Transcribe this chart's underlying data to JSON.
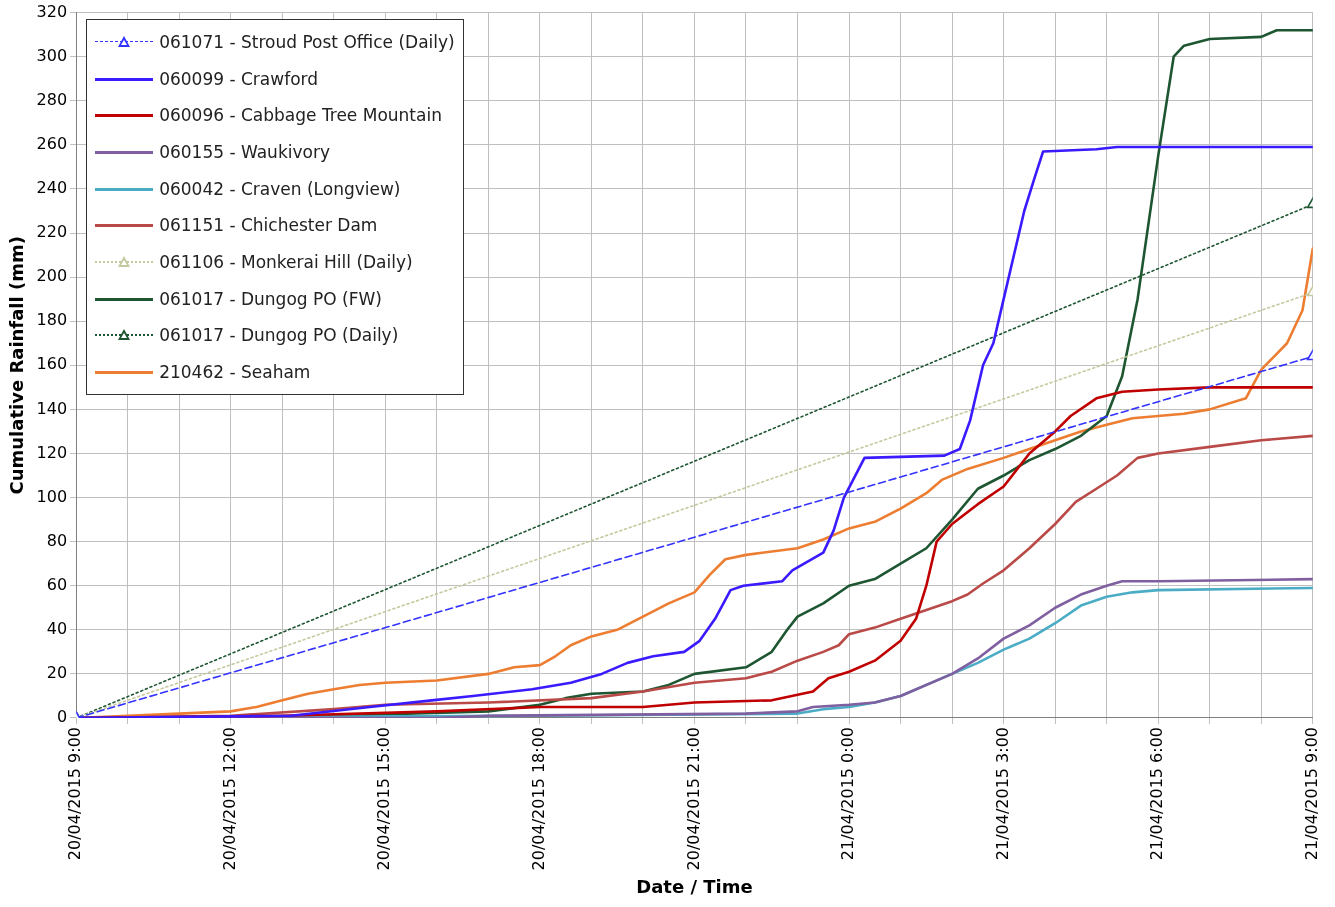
{
  "chart_data": {
    "type": "line",
    "xlabel": "Date / Time",
    "ylabel": "Cumulative Rainfall (mm)",
    "xlim": [
      "2015-04-20T09:00",
      "2015-04-21T09:00"
    ],
    "xticks": [
      {
        "value": "2015-04-20T09:00",
        "label": "20/04/2015 9:00"
      },
      {
        "value": "2015-04-20T10:00",
        "label": null
      },
      {
        "value": "2015-04-20T11:00",
        "label": null
      },
      {
        "value": "2015-04-20T12:00",
        "label": "20/04/2015 12:00"
      },
      {
        "value": "2015-04-20T13:00",
        "label": null
      },
      {
        "value": "2015-04-20T14:00",
        "label": null
      },
      {
        "value": "2015-04-20T15:00",
        "label": "20/04/2015 15:00"
      },
      {
        "value": "2015-04-20T16:00",
        "label": null
      },
      {
        "value": "2015-04-20T17:00",
        "label": null
      },
      {
        "value": "2015-04-20T18:00",
        "label": "20/04/2015 18:00"
      },
      {
        "value": "2015-04-20T19:00",
        "label": null
      },
      {
        "value": "2015-04-20T20:00",
        "label": null
      },
      {
        "value": "2015-04-20T21:00",
        "label": "20/04/2015 21:00"
      },
      {
        "value": "2015-04-20T22:00",
        "label": null
      },
      {
        "value": "2015-04-20T23:00",
        "label": null
      },
      {
        "value": "2015-04-21T00:00",
        "label": "21/04/2015 0:00"
      },
      {
        "value": "2015-04-21T01:00",
        "label": null
      },
      {
        "value": "2015-04-21T02:00",
        "label": null
      },
      {
        "value": "2015-04-21T03:00",
        "label": "21/04/2015 3:00"
      },
      {
        "value": "2015-04-21T04:00",
        "label": null
      },
      {
        "value": "2015-04-21T05:00",
        "label": null
      },
      {
        "value": "2015-04-21T06:00",
        "label": "21/04/2015 6:00"
      },
      {
        "value": "2015-04-21T07:00",
        "label": null
      },
      {
        "value": "2015-04-21T08:00",
        "label": null
      },
      {
        "value": "2015-04-21T09:00",
        "label": "21/04/2015 9:00"
      }
    ],
    "ylim": [
      0,
      320
    ],
    "yticks": [
      0,
      20,
      40,
      60,
      80,
      100,
      120,
      140,
      160,
      180,
      200,
      220,
      240,
      260,
      280,
      300,
      320
    ],
    "grid": true,
    "legend": "top left",
    "series": [
      {
        "name": "061071 - Stroud Post Office (Daily)",
        "color": "#3333ff",
        "line_style": "dashed",
        "marker": "triangle",
        "x": [
          "2015-04-20T09:00",
          "2015-04-21T09:00"
        ],
        "values": [
          0,
          164
        ]
      },
      {
        "name": "060099 - Crawford",
        "color": "#3a1aff",
        "line_style": "solid",
        "marker": "none",
        "x": [
          "2015-04-20T09:00",
          "2015-04-20T13:10",
          "2015-04-20T14:42",
          "2015-04-20T15:54",
          "2015-04-20T16:42",
          "2015-04-20T17:51",
          "2015-04-20T18:36",
          "2015-04-20T19:12",
          "2015-04-20T19:42",
          "2015-04-20T20:12",
          "2015-04-20T20:48",
          "2015-04-20T21:06",
          "2015-04-20T21:24",
          "2015-04-20T21:42",
          "2015-04-20T21:57",
          "2015-04-20T22:42",
          "2015-04-20T22:54",
          "2015-04-20T23:30",
          "2015-04-20T23:42",
          "2015-04-20T23:54",
          "2015-04-21T00:18",
          "2015-04-21T01:51",
          "2015-04-21T02:09",
          "2015-04-21T02:21",
          "2015-04-21T02:36",
          "2015-04-21T02:48",
          "2015-04-21T03:00",
          "2015-04-21T03:12",
          "2015-04-21T03:24",
          "2015-04-21T03:36",
          "2015-04-21T03:46",
          "2015-04-21T04:48",
          "2015-04-21T05:12",
          "2015-04-21T09:00"
        ],
        "values": [
          0,
          1,
          5,
          8,
          10,
          13,
          16,
          20,
          25,
          28,
          30,
          35,
          45,
          58,
          60,
          62,
          67,
          75,
          85,
          100,
          118,
          119,
          122,
          135,
          160,
          170,
          190,
          210,
          230,
          245,
          257,
          258,
          259,
          259
        ]
      },
      {
        "name": "060096 - Cabbage Tree Mountain",
        "color": "#c00000",
        "line_style": "solid",
        "marker": "none",
        "x": [
          "2015-04-20T09:00",
          "2015-04-20T13:00",
          "2015-04-20T16:00",
          "2015-04-20T18:00",
          "2015-04-20T20:00",
          "2015-04-20T21:00",
          "2015-04-20T22:30",
          "2015-04-20T23:18",
          "2015-04-20T23:36",
          "2015-04-21T00:00",
          "2015-04-21T00:30",
          "2015-04-21T01:00",
          "2015-04-21T01:18",
          "2015-04-21T01:30",
          "2015-04-21T01:42",
          "2015-04-21T02:00",
          "2015-04-21T02:30",
          "2015-04-21T03:00",
          "2015-04-21T03:30",
          "2015-04-21T04:00",
          "2015-04-21T04:18",
          "2015-04-21T04:48",
          "2015-04-21T05:18",
          "2015-04-21T06:00",
          "2015-04-21T07:00",
          "2015-04-21T09:00"
        ],
        "values": [
          0,
          1,
          3,
          5,
          5,
          7,
          8,
          12,
          18,
          21,
          26,
          35,
          45,
          60,
          80,
          88,
          97,
          105,
          120,
          130,
          137,
          145,
          148,
          149,
          150,
          150
        ]
      },
      {
        "name": "060155 - Waukivory",
        "color": "#7f5fa0",
        "line_style": "solid",
        "marker": "none",
        "x": [
          "2015-04-20T09:00",
          "2015-04-20T16:00",
          "2015-04-20T17:00",
          "2015-04-20T22:00",
          "2015-04-20T23:00",
          "2015-04-20T23:18",
          "2015-04-21T00:00",
          "2015-04-21T00:30",
          "2015-04-21T01:00",
          "2015-04-21T02:00",
          "2015-04-21T02:30",
          "2015-04-21T03:00",
          "2015-04-21T03:30",
          "2015-04-21T04:00",
          "2015-04-21T04:30",
          "2015-04-21T05:00",
          "2015-04-21T05:18",
          "2015-04-21T06:00",
          "2015-04-21T09:00"
        ],
        "values": [
          0,
          0,
          1,
          2,
          3,
          5,
          6,
          7,
          10,
          20,
          27,
          36,
          42,
          50,
          56,
          60,
          62,
          62,
          63
        ]
      },
      {
        "name": "060042 - Craven (Longview)",
        "color": "#4bacc6",
        "line_style": "solid",
        "marker": "none",
        "x": [
          "2015-04-20T09:00",
          "2015-04-20T18:00",
          "2015-04-20T23:00",
          "2015-04-20T23:30",
          "2015-04-21T00:00",
          "2015-04-21T00:30",
          "2015-04-21T01:00",
          "2015-04-21T01:30",
          "2015-04-21T02:00",
          "2015-04-21T02:30",
          "2015-04-21T03:00",
          "2015-04-21T03:30",
          "2015-04-21T04:00",
          "2015-04-21T04:30",
          "2015-04-21T05:00",
          "2015-04-21T05:30",
          "2015-04-21T06:00",
          "2015-04-21T09:00"
        ],
        "values": [
          0,
          1,
          2,
          4,
          5,
          7,
          10,
          15,
          20,
          25,
          31,
          36,
          43,
          51,
          55,
          57,
          58,
          59
        ]
      },
      {
        "name": "061151 - Chichester Dam",
        "color": "#b94a48",
        "line_style": "solid",
        "marker": "none",
        "x": [
          "2015-04-20T09:00",
          "2015-04-20T12:00",
          "2015-04-20T14:00",
          "2015-04-20T15:00",
          "2015-04-20T17:00",
          "2015-04-20T19:00",
          "2015-04-20T20:00",
          "2015-04-20T21:00",
          "2015-04-20T22:00",
          "2015-04-20T22:30",
          "2015-04-20T23:00",
          "2015-04-20T23:30",
          "2015-04-20T23:48",
          "2015-04-21T00:00",
          "2015-04-21T00:30",
          "2015-04-21T01:00",
          "2015-04-21T01:30",
          "2015-04-21T02:00",
          "2015-04-21T02:18",
          "2015-04-21T02:36",
          "2015-04-21T03:00",
          "2015-04-21T03:30",
          "2015-04-21T04:00",
          "2015-04-21T04:24",
          "2015-04-21T04:48",
          "2015-04-21T05:12",
          "2015-04-21T05:36",
          "2015-04-21T06:00",
          "2015-04-21T07:00",
          "2015-04-21T08:00",
          "2015-04-21T09:00"
        ],
        "values": [
          0,
          1,
          4,
          6,
          7,
          9,
          12,
          16,
          18,
          21,
          26,
          30,
          33,
          38,
          41,
          45,
          49,
          53,
          56,
          61,
          67,
          77,
          88,
          98,
          104,
          110,
          118,
          120,
          123,
          126,
          128
        ]
      },
      {
        "name": "061106 - Monkerai Hill (Daily)",
        "color": "#c4c99e",
        "line_style": "dotted",
        "marker": "triangle",
        "x": [
          "2015-04-20T09:00",
          "2015-04-21T09:00"
        ],
        "values": [
          0,
          193
        ]
      },
      {
        "name": "061017 - Dungog PO (FW)",
        "color": "#1e5631",
        "line_style": "solid",
        "marker": "none",
        "x": [
          "2015-04-20T09:00",
          "2015-04-20T14:00",
          "2015-04-20T17:00",
          "2015-04-20T18:00",
          "2015-04-20T18:30",
          "2015-04-20T19:00",
          "2015-04-20T20:00",
          "2015-04-20T20:30",
          "2015-04-20T21:00",
          "2015-04-20T22:00",
          "2015-04-20T22:30",
          "2015-04-20T22:48",
          "2015-04-20T23:00",
          "2015-04-20T23:30",
          "2015-04-21T00:00",
          "2015-04-21T00:30",
          "2015-04-21T01:00",
          "2015-04-21T01:30",
          "2015-04-21T02:00",
          "2015-04-21T02:30",
          "2015-04-21T03:00",
          "2015-04-21T03:30",
          "2015-04-21T04:00",
          "2015-04-21T04:30",
          "2015-04-21T05:00",
          "2015-04-21T05:18",
          "2015-04-21T05:36",
          "2015-04-21T06:00",
          "2015-04-21T06:18",
          "2015-04-21T06:30",
          "2015-04-21T07:00",
          "2015-04-21T08:00",
          "2015-04-21T08:18",
          "2015-04-21T09:00"
        ],
        "values": [
          0,
          1,
          3,
          6,
          9,
          11,
          12,
          15,
          20,
          23,
          30,
          40,
          46,
          52,
          60,
          63,
          70,
          77,
          90,
          104,
          110,
          117,
          122,
          128,
          137,
          155,
          190,
          255,
          300,
          305,
          308,
          309,
          312,
          312
        ]
      },
      {
        "name": "061017 - Dungog PO (Daily)",
        "color": "#1e5631",
        "line_style": "dotted",
        "marker": "triangle",
        "x": [
          "2015-04-20T09:00",
          "2015-04-21T09:00"
        ],
        "values": [
          0,
          233
        ]
      },
      {
        "name": "210462 - Seaham",
        "color": "#ed7d31",
        "line_style": "solid",
        "marker": "none",
        "x": [
          "2015-04-20T09:00",
          "2015-04-20T10:00",
          "2015-04-20T11:00",
          "2015-04-20T12:00",
          "2015-04-20T12:30",
          "2015-04-20T13:00",
          "2015-04-20T13:30",
          "2015-04-20T14:00",
          "2015-04-20T14:30",
          "2015-04-20T15:00",
          "2015-04-20T16:00",
          "2015-04-20T17:00",
          "2015-04-20T17:30",
          "2015-04-20T18:00",
          "2015-04-20T18:18",
          "2015-04-20T18:36",
          "2015-04-20T19:00",
          "2015-04-20T19:30",
          "2015-04-20T20:00",
          "2015-04-20T20:30",
          "2015-04-20T21:00",
          "2015-04-20T21:18",
          "2015-04-20T21:36",
          "2015-04-20T22:00",
          "2015-04-20T23:00",
          "2015-04-20T23:30",
          "2015-04-21T00:00",
          "2015-04-21T00:30",
          "2015-04-21T01:00",
          "2015-04-21T01:30",
          "2015-04-21T01:48",
          "2015-04-21T02:18",
          "2015-04-21T03:00",
          "2015-04-21T03:30",
          "2015-04-21T04:00",
          "2015-04-21T04:30",
          "2015-04-21T05:00",
          "2015-04-21T05:30",
          "2015-04-21T06:00",
          "2015-04-21T06:30",
          "2015-04-21T07:00",
          "2015-04-21T07:42",
          "2015-04-21T08:00",
          "2015-04-21T08:30",
          "2015-04-21T08:48",
          "2015-04-21T09:00"
        ],
        "values": [
          0,
          1,
          2,
          3,
          5,
          8,
          11,
          13,
          15,
          16,
          17,
          20,
          23,
          24,
          28,
          33,
          37,
          40,
          46,
          52,
          57,
          65,
          72,
          74,
          77,
          81,
          86,
          89,
          95,
          102,
          108,
          113,
          118,
          122,
          126,
          130,
          133,
          136,
          137,
          138,
          140,
          145,
          158,
          170,
          185,
          213
        ]
      }
    ]
  }
}
